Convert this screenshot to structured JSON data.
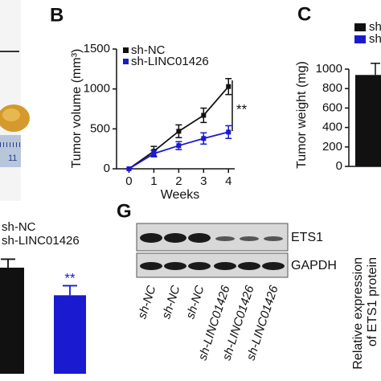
{
  "panel_labels": [
    "B",
    "C",
    "G"
  ],
  "photo": {
    "ruler_label": "11"
  },
  "chart_data": [
    {
      "type": "line",
      "ylabel": "Tumor volume (mm³)",
      "xlabel": "Weeks",
      "x": [
        0,
        1,
        2,
        3,
        4
      ],
      "xlim": [
        -0.5,
        4.25
      ],
      "xticks": [
        0,
        1,
        2,
        3,
        4
      ],
      "ylim": [
        0,
        1500
      ],
      "yticks": [
        0,
        500,
        1000,
        1500
      ],
      "series": [
        {
          "name": "sh-NC",
          "color": "#111111",
          "values": [
            0,
            220,
            470,
            670,
            1030
          ],
          "errors": [
            0,
            60,
            80,
            90,
            100
          ]
        },
        {
          "name": "sh-LINC01426",
          "color": "#1a1ad0",
          "values": [
            0,
            190,
            290,
            380,
            460
          ],
          "errors": [
            0,
            40,
            50,
            70,
            80
          ]
        }
      ],
      "annotation": "**"
    },
    {
      "type": "bar",
      "ylabel": "Tumor weight (mg)",
      "ylim": [
        0,
        1000
      ],
      "yticks": [
        0,
        200,
        400,
        600,
        800,
        1000
      ],
      "series": [
        {
          "name": "sh",
          "color": "#111111",
          "values": [
            940
          ],
          "errors": [
            120
          ]
        },
        {
          "name": "sh",
          "color": "#1a1ad0",
          "values": []
        }
      ]
    },
    {
      "type": "bar",
      "series": [
        {
          "name": "sh-NC",
          "color": "#111111",
          "values": [
            1.0
          ],
          "errors": [
            0.08
          ]
        },
        {
          "name": "sh-LINC01426",
          "color": "#1a1ad0",
          "values": [
            0.74
          ],
          "errors": [
            0.09
          ]
        }
      ],
      "annotation": "**"
    }
  ],
  "blot": {
    "bands": [
      "ETS1",
      "GAPDH"
    ],
    "lanes": [
      "sh-NC",
      "sh-NC",
      "sh-NC",
      "sh-LINC01426",
      "sh-LINC01426",
      "sh-LINC01426"
    ],
    "ylabel": [
      "Relative expression",
      "of ETS1 protein"
    ]
  }
}
